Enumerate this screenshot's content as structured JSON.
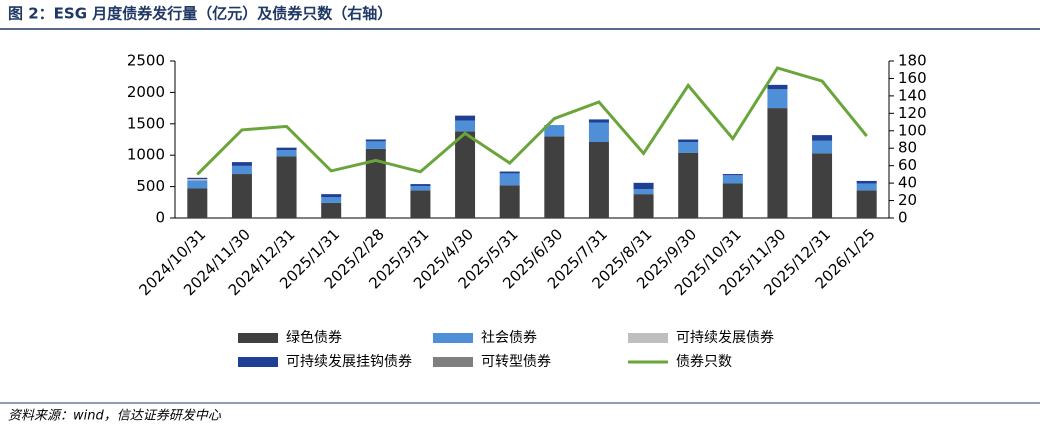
{
  "chart_data": {
    "type": "bar",
    "stacked": true,
    "title": "图 2：ESG 月度债券发行量（亿元）及债券只数（右轴）",
    "source": "资料来源：wind，信达证券研发中心",
    "categories": [
      "2024/10/31",
      "2024/11/30",
      "2024/12/31",
      "2025/1/31",
      "2025/2/28",
      "2025/3/31",
      "2025/4/30",
      "2025/5/31",
      "2025/6/30",
      "2025/7/31",
      "2025/8/31",
      "2025/9/30",
      "2025/10/31",
      "2025/11/30",
      "2025/12/31",
      "2026/1/25"
    ],
    "series": [
      {
        "name": "绿色债券",
        "color": "#404040",
        "values": [
          470,
          700,
          980,
          240,
          1100,
          440,
          1380,
          520,
          1300,
          1210,
          380,
          1040,
          550,
          1750,
          1030,
          440
        ]
      },
      {
        "name": "社会债券",
        "color": "#4f8fd8",
        "values": [
          130,
          130,
          100,
          90,
          120,
          70,
          170,
          190,
          180,
          310,
          80,
          170,
          130,
          300,
          200,
          110
        ]
      },
      {
        "name": "可持续发展债券",
        "color": "#bfbfbf",
        "values": [
          20,
          0,
          0,
          0,
          0,
          0,
          0,
          0,
          0,
          0,
          0,
          0,
          0,
          0,
          0,
          0
        ]
      },
      {
        "name": "可持续发展挂钩债券",
        "color": "#1f3f95",
        "values": [
          20,
          60,
          40,
          50,
          30,
          30,
          80,
          30,
          0,
          50,
          100,
          40,
          20,
          70,
          90,
          40
        ]
      },
      {
        "name": "可转型债券",
        "color": "#7f7f7f",
        "values": [
          0,
          0,
          0,
          0,
          0,
          0,
          0,
          0,
          0,
          0,
          0,
          0,
          0,
          0,
          0,
          0
        ]
      },
      {
        "name": "债券只数",
        "color": "#6aa53a",
        "type": "line",
        "axis": "y2",
        "values": [
          50,
          101,
          105,
          54,
          66,
          53,
          97,
          63,
          114,
          133,
          74,
          152,
          91,
          172,
          157,
          94
        ]
      }
    ],
    "ylim": [
      0,
      2500
    ],
    "yticks": [
      0,
      500,
      1000,
      1500,
      2000,
      2500
    ],
    "y2lim": [
      0,
      180
    ],
    "y2ticks": [
      0,
      20,
      40,
      60,
      80,
      100,
      120,
      140,
      160,
      180
    ],
    "grid": false
  }
}
